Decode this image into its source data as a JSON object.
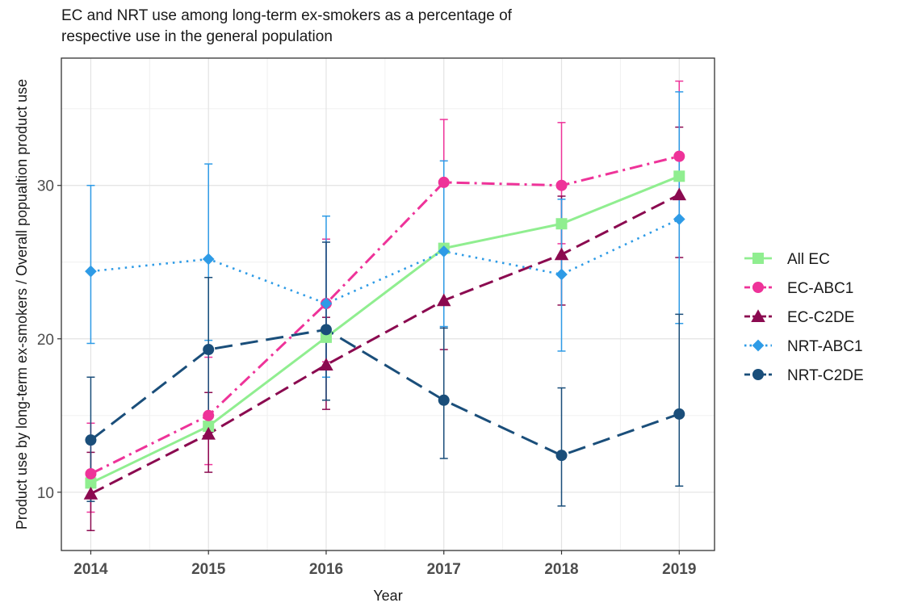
{
  "chart_data": {
    "type": "line",
    "title": "EC and NRT use among long-term ex-smokers as a percentage of respective use in the general population",
    "title_lines": [
      "EC and NRT use among long-term ex-smokers as a percentage of",
      "respective use in the general population"
    ],
    "xlabel": "Year",
    "ylabel": "Product use by long-term ex-smokers /  Overall popualtion product use",
    "x": [
      2014,
      2015,
      2016,
      2017,
      2018,
      2019
    ],
    "x_ticks": [
      "2014",
      "2015",
      "2016",
      "2017",
      "2018",
      "2019"
    ],
    "y_ticks": [
      10,
      20,
      30
    ],
    "y_tick_labels": [
      "10",
      "20",
      "30"
    ],
    "ylim": [
      6.2,
      38.3
    ],
    "xlim": [
      2013.75,
      2019.3
    ],
    "grid": true,
    "legend_position": "right",
    "series": [
      {
        "name": "All EC",
        "color": "#90ee90",
        "marker": "square",
        "line_style": "solid",
        "values": [
          10.6,
          14.3,
          20.1,
          25.9,
          27.5,
          30.6
        ],
        "lower": [
          null,
          null,
          null,
          null,
          null,
          null
        ],
        "upper": [
          null,
          null,
          null,
          null,
          null,
          null
        ]
      },
      {
        "name": "EC-ABC1",
        "color": "#ee3399",
        "marker": "circle",
        "line_style": "dashdot",
        "values": [
          11.2,
          15.0,
          22.3,
          30.2,
          30.0,
          31.9
        ],
        "lower": [
          8.7,
          11.8,
          18.5,
          26.1,
          26.2,
          27.9
        ],
        "upper": [
          14.5,
          18.8,
          26.5,
          34.3,
          34.1,
          36.8
        ]
      },
      {
        "name": "EC-C2DE",
        "color": "#8b0a50",
        "marker": "triangle",
        "line_style": "longdash",
        "values": [
          9.9,
          13.8,
          18.3,
          22.5,
          25.5,
          29.4
        ],
        "lower": [
          7.5,
          11.3,
          15.4,
          19.3,
          22.2,
          25.3
        ],
        "upper": [
          12.6,
          16.5,
          21.4,
          26.0,
          29.3,
          33.8
        ]
      },
      {
        "name": "NRT-ABC1",
        "color": "#2e9be6",
        "marker": "diamond",
        "line_style": "dotted",
        "values": [
          24.4,
          25.2,
          22.3,
          25.7,
          24.2,
          27.8
        ],
        "lower": [
          19.7,
          19.9,
          17.5,
          20.8,
          19.2,
          21.0
        ],
        "upper": [
          30.0,
          31.4,
          28.0,
          31.6,
          29.1,
          36.1
        ]
      },
      {
        "name": "NRT-C2DE",
        "color": "#1a4e7a",
        "marker": "circle",
        "line_style": "dashed",
        "values": [
          13.4,
          19.3,
          20.6,
          16.0,
          12.4,
          15.1
        ],
        "lower": [
          9.4,
          15.1,
          16.0,
          12.2,
          9.1,
          10.4
        ],
        "upper": [
          17.5,
          24.0,
          26.3,
          20.7,
          16.8,
          21.6
        ]
      }
    ]
  }
}
